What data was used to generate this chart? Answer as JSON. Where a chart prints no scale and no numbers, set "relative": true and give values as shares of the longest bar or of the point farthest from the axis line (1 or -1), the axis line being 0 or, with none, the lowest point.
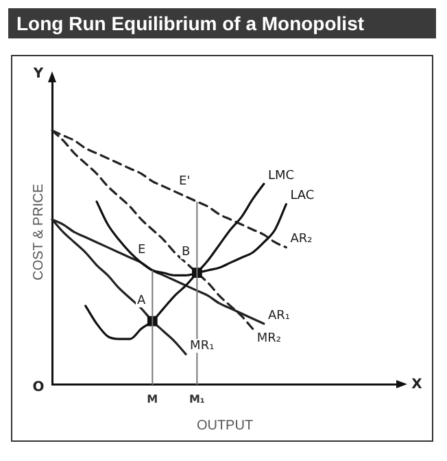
{
  "chart_data": {
    "type": "line",
    "title": "Long Run Equilibrium of a Monopolist",
    "xlabel": "OUTPUT",
    "ylabel": "COST & PRICE",
    "relative": true,
    "legend": false,
    "grid": false,
    "marker": "none",
    "categories": [
      null,
      null,
      null,
      null,
      null,
      null,
      null,
      null,
      null,
      "M",
      null,
      null,
      null,
      "M₁",
      null,
      null,
      null,
      null,
      null,
      null,
      null,
      null,
      null,
      null,
      null,
      null,
      null,
      null,
      null,
      null,
      null,
      null
    ],
    "series": [
      {
        "name": "LMC",
        "color": "#111111",
        "line_style": "solid",
        "values": [
          null,
          null,
          null,
          0.31,
          0.24,
          0.19,
          0.18,
          0.18,
          0.22,
          0.25,
          0.3,
          0.35,
          0.39,
          0.44,
          0.49,
          0.55,
          0.61,
          0.66,
          0.73,
          0.79,
          null,
          null,
          null,
          null,
          null,
          null,
          null,
          null,
          null,
          null,
          null,
          null
        ]
      },
      {
        "name": "LAC",
        "color": "#111111",
        "line_style": "solid",
        "values": [
          null,
          null,
          null,
          null,
          0.72,
          0.63,
          0.57,
          0.52,
          0.48,
          0.45,
          0.44,
          0.43,
          0.43,
          0.44,
          0.45,
          0.46,
          0.48,
          0.5,
          0.52,
          0.56,
          0.61,
          0.71,
          null,
          null,
          null,
          null,
          null,
          null,
          null,
          null,
          null,
          null
        ]
      },
      {
        "name": "AR₂",
        "color": "#222222",
        "line_style": "dashed",
        "values": [
          1,
          0.98,
          0.96,
          0.93,
          0.91,
          0.89,
          0.87,
          0.85,
          0.83,
          0.8,
          0.78,
          0.76,
          0.74,
          0.72,
          0.7,
          0.67,
          0.65,
          0.63,
          0.61,
          0.59,
          0.56,
          0.54,
          null,
          null,
          null,
          null,
          null,
          null,
          null,
          null,
          null,
          null
        ]
      },
      {
        "name": "AR₁",
        "color": "#222222",
        "line_style": "solid",
        "values": [
          0.65,
          0.63,
          0.6,
          0.58,
          0.56,
          0.54,
          0.52,
          0.5,
          0.48,
          0.45,
          0.43,
          0.41,
          0.39,
          0.37,
          0.35,
          0.32,
          0.3,
          0.28,
          0.26,
          0.24,
          null,
          null,
          null,
          null,
          null,
          null,
          null,
          null,
          null,
          null,
          null,
          null
        ]
      },
      {
        "name": "MR₂",
        "color": "#222222",
        "line_style": "dashed",
        "values": [
          1,
          0.96,
          0.91,
          0.87,
          0.83,
          0.78,
          0.74,
          0.7,
          0.65,
          0.61,
          0.57,
          0.52,
          0.48,
          0.44,
          0.4,
          0.35,
          0.31,
          0.27,
          0.22,
          null,
          null,
          null,
          null,
          null,
          null,
          null,
          null,
          null,
          null,
          null,
          null,
          null
        ]
      },
      {
        "name": "MR₁",
        "color": "#222222",
        "line_style": "solid",
        "values": [
          0.65,
          0.6,
          0.56,
          0.52,
          0.47,
          0.43,
          0.38,
          0.34,
          0.3,
          0.25,
          0.21,
          0.17,
          0.12,
          null,
          null,
          null,
          null,
          null,
          null,
          null,
          null,
          null,
          null,
          null,
          null,
          null,
          null,
          null,
          null,
          null,
          null,
          null
        ]
      },
      {
        "type": "scatter",
        "color": "#111111",
        "marker": "square",
        "values": [
          null,
          null,
          null,
          null,
          null,
          null,
          null,
          null,
          null,
          0.25,
          null,
          null,
          null,
          0.44,
          null,
          null,
          null,
          null,
          null,
          null,
          null,
          null,
          null,
          null,
          null,
          null,
          null,
          null,
          null,
          null,
          null,
          null
        ]
      }
    ],
    "ref_lines": [
      {
        "axis": "x",
        "value": "M",
        "color": "#777777"
      },
      {
        "axis": "x",
        "value": "M₁",
        "color": "#777777"
      }
    ],
    "annotations": [
      "Y",
      "X",
      "O",
      {
        "text": "A",
        "x": "M",
        "y": 0.25
      },
      {
        "text": "E",
        "x": "M",
        "y": 0.45
      },
      {
        "text": "B",
        "x": "M₁",
        "y": 0.44
      },
      {
        "text": "E'",
        "x": "M₁",
        "y": 0.72
      }
    ]
  }
}
